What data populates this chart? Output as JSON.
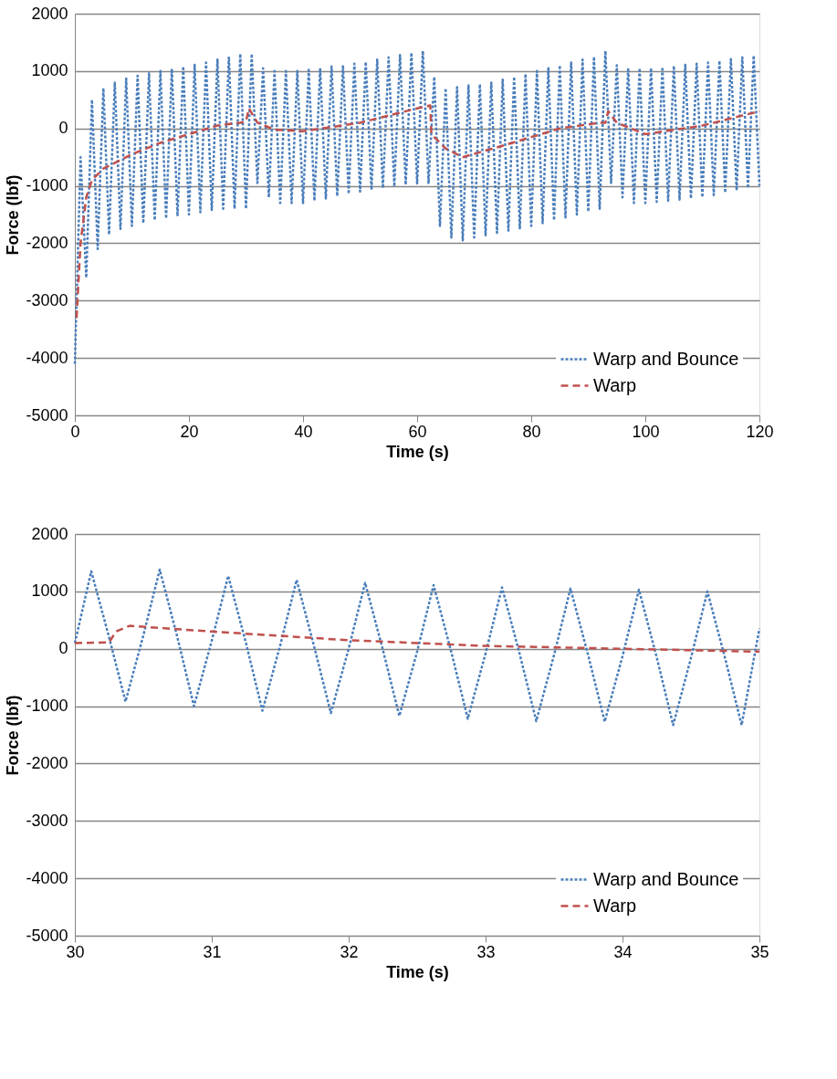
{
  "chart_data": [
    {
      "type": "line",
      "xlabel": "Time (s)",
      "ylabel": "Force (lbf)",
      "xlim": [
        0,
        120
      ],
      "xticks": [
        0,
        20,
        40,
        60,
        80,
        100,
        120
      ],
      "ylim": [
        -5000,
        2000
      ],
      "yticks": [
        -5000,
        -4000,
        -3000,
        -2000,
        -1000,
        0,
        1000,
        2000
      ],
      "grid": "y",
      "legend": "bottom right",
      "marker": "none",
      "series": [
        {
          "name": "Warp and Bounce",
          "color": "#4a7ebb",
          "line_style": "dotted",
          "x": [
            0,
            1,
            2,
            3,
            4,
            5,
            6,
            7,
            8,
            9,
            10,
            11,
            12,
            13,
            14,
            15,
            16,
            17,
            18,
            19,
            20,
            21,
            22,
            23,
            24,
            25,
            26,
            27,
            28,
            29,
            30,
            31,
            32,
            33,
            34,
            35,
            36,
            37,
            38,
            39,
            40,
            41,
            42,
            43,
            44,
            45,
            46,
            47,
            48,
            49,
            50,
            51,
            52,
            53,
            54,
            55,
            56,
            57,
            58,
            59,
            60,
            61,
            62,
            63,
            64,
            65,
            66,
            67,
            68,
            69,
            70,
            71,
            72,
            73,
            74,
            75,
            76,
            77,
            78,
            79,
            80,
            81,
            82,
            83,
            84,
            85,
            86,
            87,
            88,
            89,
            90,
            91,
            92,
            93,
            94,
            95,
            96,
            97,
            98,
            99,
            100,
            101,
            102,
            103,
            104,
            105,
            106,
            107,
            108,
            109,
            110,
            111,
            112,
            113,
            114,
            115,
            116,
            117,
            118,
            119,
            120
          ],
          "values": [
            -4100,
            -500,
            -2600,
            500,
            -2100,
            700,
            -1850,
            800,
            -1750,
            870,
            -1700,
            920,
            -1650,
            960,
            -1600,
            1000,
            -1570,
            1040,
            -1530,
            1080,
            -1500,
            1110,
            -1460,
            1150,
            -1420,
            1200,
            -1400,
            1250,
            -1400,
            1300,
            -1400,
            1300,
            -950,
            1050,
            -1200,
            1000,
            -1300,
            1000,
            -1300,
            1000,
            -1300,
            1020,
            -1260,
            1050,
            -1220,
            1080,
            -1180,
            1100,
            -1140,
            1130,
            -1100,
            1160,
            -1070,
            1200,
            -1040,
            1240,
            -1010,
            1280,
            -980,
            1320,
            -960,
            1350,
            -950,
            900,
            -1700,
            700,
            -1900,
            720,
            -1950,
            750,
            -1900,
            770,
            -1860,
            800,
            -1820,
            850,
            -1780,
            900,
            -1740,
            950,
            -1700,
            1000,
            -1650,
            1050,
            -1600,
            1100,
            -1550,
            1150,
            -1500,
            1200,
            -1450,
            1250,
            -1400,
            1350,
            -950,
            1100,
            -1200,
            1050,
            -1300,
            1050,
            -1300,
            1050,
            -1280,
            1070,
            -1260,
            1090,
            -1240,
            1110,
            -1220,
            1130,
            -1200,
            1150,
            -1160,
            1180,
            -1120,
            1210,
            -1080,
            1240,
            -1040,
            1270,
            -1000
          ]
        },
        {
          "name": "Warp",
          "color": "#c0504d",
          "line_style": "dashed",
          "x": [
            0.3,
            1,
            2,
            3,
            5,
            10,
            15,
            20,
            25,
            29,
            30,
            30.5,
            32,
            35,
            40,
            50,
            60,
            62.3,
            62.5,
            65,
            68,
            75,
            85,
            92,
            93,
            93.5,
            95,
            100,
            110,
            120
          ],
          "values": [
            -3300,
            -2000,
            -1200,
            -900,
            -700,
            -450,
            -250,
            -100,
            50,
            100,
            120,
            350,
            100,
            -20,
            -50,
            100,
            350,
            400,
            -100,
            -350,
            -500,
            -300,
            0,
            100,
            100,
            300,
            100,
            -100,
            50,
            300
          ]
        }
      ]
    },
    {
      "type": "line",
      "xlabel": "Time (s)",
      "ylabel": "Force (lbf)",
      "xlim": [
        30,
        35
      ],
      "xticks": [
        30,
        31,
        32,
        33,
        34,
        35
      ],
      "ylim": [
        -5000,
        2000
      ],
      "yticks": [
        -5000,
        -4000,
        -3000,
        -2000,
        -1000,
        0,
        1000,
        2000
      ],
      "grid": "y",
      "legend": "bottom right",
      "marker": "none",
      "series": [
        {
          "name": "Warp and Bounce",
          "color": "#4a7ebb",
          "line_style": "dotted",
          "x": [
            30,
            30.12,
            30.25,
            30.37,
            30.5,
            30.62,
            30.75,
            30.87,
            31,
            31.12,
            31.25,
            31.37,
            31.5,
            31.62,
            31.75,
            31.87,
            32,
            32.12,
            32.25,
            32.37,
            32.5,
            32.62,
            32.75,
            32.87,
            33,
            33.12,
            33.25,
            33.37,
            33.5,
            33.62,
            33.75,
            33.87,
            34,
            34.12,
            34.25,
            34.37,
            34.5,
            34.62,
            34.75,
            34.87,
            35
          ],
          "values": [
            100,
            1350,
            200,
            -920,
            230,
            1380,
            190,
            -1000,
            140,
            1270,
            100,
            -1080,
            60,
            1200,
            20,
            -1120,
            0,
            1150,
            -20,
            -1170,
            -50,
            1110,
            -60,
            -1220,
            -80,
            1070,
            -100,
            -1260,
            -110,
            1050,
            -120,
            -1270,
            -130,
            1030,
            -150,
            -1330,
            -160,
            1000,
            -170,
            -1330,
            350
          ]
        },
        {
          "name": "Warp",
          "color": "#c0504d",
          "line_style": "dashed",
          "x": [
            30,
            30.25,
            30.3,
            30.4,
            31,
            32,
            33,
            34,
            35
          ],
          "values": [
            100,
            110,
            300,
            400,
            300,
            150,
            50,
            0,
            -50
          ]
        }
      ]
    }
  ]
}
